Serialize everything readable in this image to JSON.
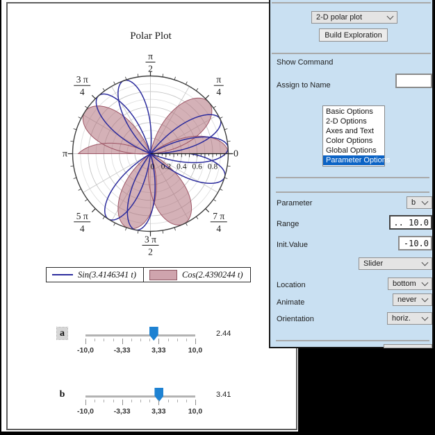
{
  "colors": {
    "canvas_bg": "#000000",
    "page_bg": "#ffffff",
    "panel_bg": "#c9e0f2",
    "selection_blue": "#0b63c5",
    "slider_thumb_blue": "#1e82d2",
    "sin_curve": "#2b2b9d",
    "cos_fill": "#ad6975",
    "cos_stroke": "#96485a"
  },
  "chart_data": {
    "type": "polar",
    "title": "Polar Plot",
    "r_max": 1.0,
    "r_grid_step": 0.1,
    "t_domain": [
      0,
      6.2832
    ],
    "r_axis_ticks": [
      0,
      0.2,
      0.4,
      0.6,
      0.8
    ],
    "r_axis_tick_labels": [
      "0",
      "0.2",
      "0.4",
      "0.6",
      "0.8"
    ],
    "angle_labels": [
      {
        "deg": 0,
        "text": "0"
      },
      {
        "deg": 45,
        "num": "π",
        "den": "4"
      },
      {
        "deg": 90,
        "num": "π",
        "den": "2"
      },
      {
        "deg": 135,
        "num": "3 π",
        "den": "4"
      },
      {
        "deg": 180,
        "text": "π"
      },
      {
        "deg": 225,
        "num": "5 π",
        "den": "4"
      },
      {
        "deg": 270,
        "num": "3 π",
        "den": "2"
      },
      {
        "deg": 315,
        "num": "7 π",
        "den": "4"
      }
    ],
    "series": [
      {
        "label": "Cos(2.4390244 t)",
        "fn": "cos",
        "coeff": 2.4390244,
        "style": "fill"
      },
      {
        "label": "Sin(3.4146341 t)",
        "fn": "sin",
        "coeff": 3.4146341,
        "style": "line"
      }
    ]
  },
  "legend": {
    "entries": [
      {
        "label": "Sin(3.4146341 t)",
        "type": "line"
      },
      {
        "label": "Cos(2.4390244 t)",
        "type": "swatch"
      }
    ]
  },
  "sliders": [
    {
      "label": "a",
      "value": 2.44,
      "value_label": "2.44",
      "min": -10,
      "max": 10,
      "selected": true,
      "tick_labels": [
        "-10,0",
        "-3,33",
        "3,33",
        "10,0"
      ]
    },
    {
      "label": "b",
      "value": 3.41,
      "value_label": "3.41",
      "min": -10,
      "max": 10,
      "selected": false,
      "tick_labels": [
        "-10,0",
        "-3,33",
        "3,33",
        "10,0"
      ]
    }
  ],
  "panel": {
    "plot_type_value": "2-D polar plot",
    "build_button_label": "Build Exploration",
    "show_command_label": "Show Command",
    "assign_to_name_label": "Assign to Name",
    "assign_to_name_value": "",
    "options_list": [
      "Basic Options",
      "2-D Options",
      "Axes and Text",
      "Color Options",
      "Global Options",
      "Parameter Options"
    ],
    "options_selected": "Parameter Options",
    "parameter_label": "Parameter",
    "parameter_value": "b",
    "range_label": "Range",
    "range_value": ".. 10.0",
    "init_value_label": "Init.Value",
    "init_value_value": "-10.0",
    "control_type_value": "Slider",
    "location_label": "Location",
    "location_value": "bottom",
    "animate_label": "Animate",
    "animate_value": "never",
    "orientation_label": "Orientation",
    "orientation_value": "horiz."
  }
}
